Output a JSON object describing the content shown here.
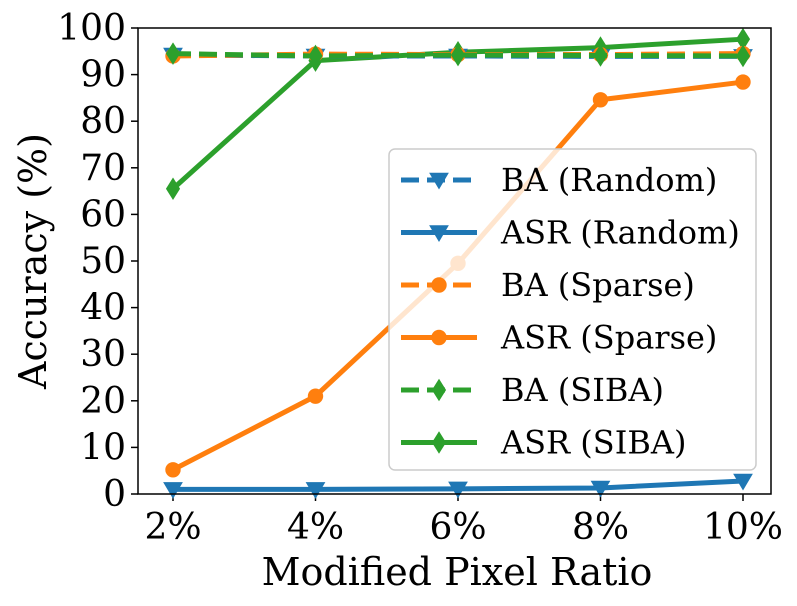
{
  "chart_data": {
    "type": "line",
    "title": "",
    "xlabel": "Modified Pixel Ratio",
    "ylabel": "Accuracy (%)",
    "categories": [
      "2%",
      "4%",
      "6%",
      "8%",
      "10%"
    ],
    "ylim": [
      0,
      100
    ],
    "yticks": [
      "0",
      "10",
      "20",
      "30",
      "40",
      "50",
      "60",
      "70",
      "80",
      "90",
      "100"
    ],
    "legend_position": "center-right",
    "series": [
      {
        "name": "BA (Random)",
        "color": "#1f77b4",
        "style": "dashed",
        "marker": "triangle-down",
        "values": [
          94.2,
          94.0,
          94.0,
          93.9,
          93.9
        ]
      },
      {
        "name": "ASR (Random)",
        "color": "#1f77b4",
        "style": "solid",
        "marker": "triangle-down",
        "values": [
          1.0,
          1.0,
          1.1,
          1.3,
          2.8
        ]
      },
      {
        "name": "BA (Sparse)",
        "color": "#ff7f0e",
        "style": "dashed",
        "marker": "circle",
        "values": [
          94.0,
          94.4,
          94.3,
          94.3,
          94.5
        ]
      },
      {
        "name": "ASR (Sparse)",
        "color": "#ff7f0e",
        "style": "solid",
        "marker": "circle",
        "values": [
          5.2,
          21.0,
          49.5,
          84.6,
          88.4
        ]
      },
      {
        "name": "BA (SIBA)",
        "color": "#2ca02c",
        "style": "dashed",
        "marker": "diamond",
        "values": [
          94.5,
          94.0,
          94.2,
          94.1,
          94.0
        ]
      },
      {
        "name": "ASR (SIBA)",
        "color": "#2ca02c",
        "style": "solid",
        "marker": "diamond",
        "values": [
          65.5,
          93.0,
          94.8,
          95.8,
          97.6
        ]
      }
    ]
  }
}
